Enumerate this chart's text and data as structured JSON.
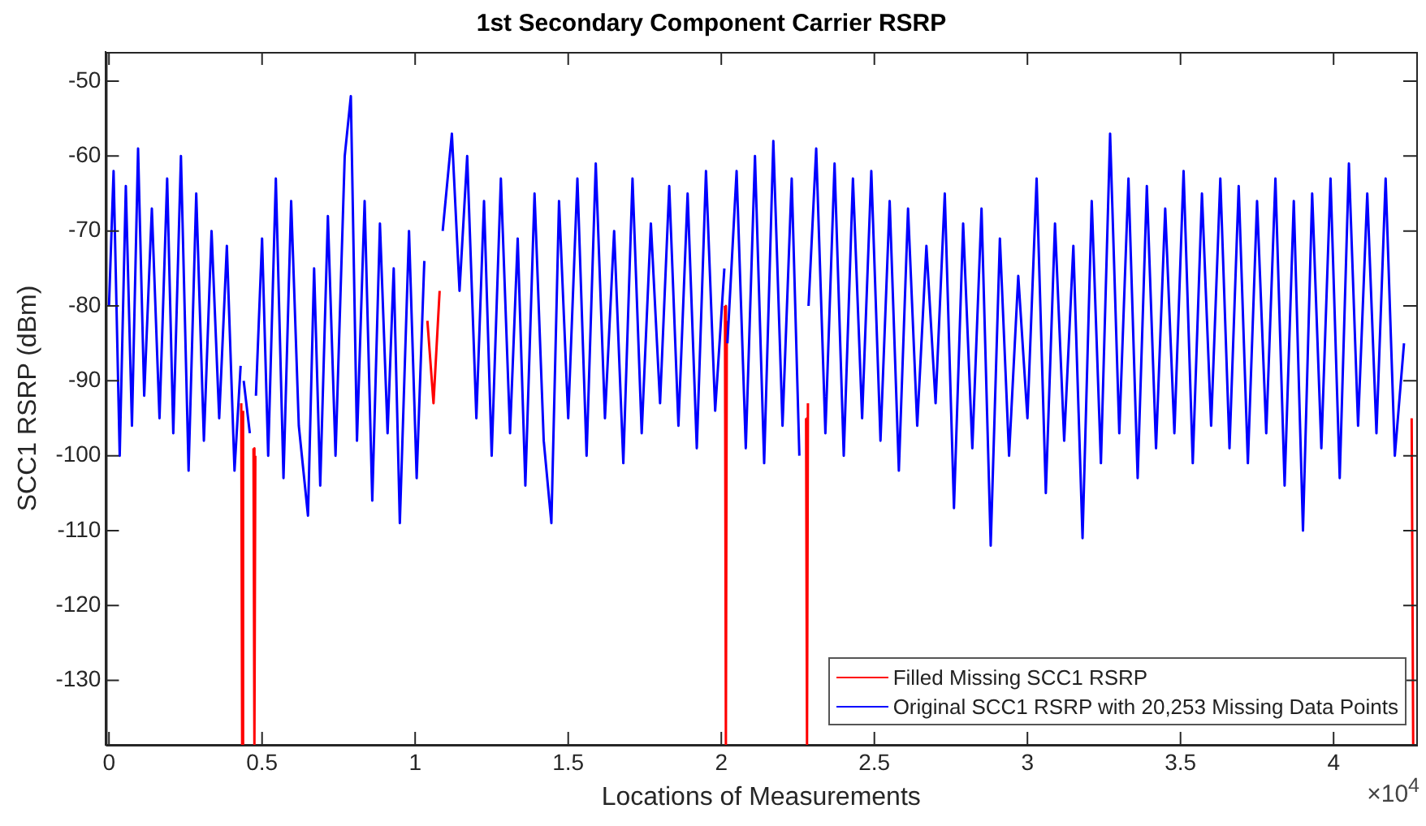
{
  "chart_data": {
    "type": "line",
    "title": "1st Secondary Component Carrier RSRP",
    "xlabel": "Locations of Measurements",
    "ylabel": "SCC1 RSRP (dBm)",
    "annotations": [
      "×10$^{4}$"
    ],
    "xlim": [
      -0.01,
      4.27
    ],
    "ylim": [
      -138.6,
      -46.1
    ],
    "xticks": [
      0,
      0.5,
      1,
      1.5,
      2,
      2.5,
      3,
      3.5,
      4
    ],
    "yticks": [
      -130,
      -120,
      -110,
      -100,
      -90,
      -80,
      -70,
      -60,
      -50
    ],
    "grid": false,
    "legend": "bottom right",
    "marker": "none",
    "line_style": "solid",
    "x": [
      0,
      0.015,
      0.035,
      0.055,
      0.075,
      0.095,
      0.115,
      0.14,
      0.165,
      0.19,
      0.21,
      0.235,
      0.26,
      0.285,
      0.31,
      0.335,
      0.36,
      0.385,
      0.41,
      0.43,
      0.435,
      0.44,
      0.46,
      0.475,
      0.48,
      0.5,
      0.52,
      0.545,
      0.57,
      0.595,
      0.62,
      0.65,
      0.67,
      0.69,
      0.715,
      0.74,
      0.77,
      0.79,
      0.81,
      0.835,
      0.86,
      0.885,
      0.91,
      0.93,
      0.95,
      0.98,
      1.005,
      1.03,
      1.06,
      1.09,
      1.12,
      1.145,
      1.17,
      1.2,
      1.225,
      1.25,
      1.28,
      1.31,
      1.335,
      1.36,
      1.39,
      1.42,
      1.445,
      1.47,
      1.5,
      1.53,
      1.56,
      1.59,
      1.62,
      1.65,
      1.68,
      1.71,
      1.74,
      1.77,
      1.8,
      1.83,
      1.86,
      1.89,
      1.92,
      1.95,
      1.98,
      2.01,
      2.015,
      2.02,
      2.05,
      2.08,
      2.11,
      2.14,
      2.17,
      2.2,
      2.23,
      2.255,
      2.28,
      2.285,
      2.31,
      2.34,
      2.37,
      2.4,
      2.43,
      2.46,
      2.49,
      2.52,
      2.55,
      2.58,
      2.61,
      2.64,
      2.67,
      2.7,
      2.73,
      2.76,
      2.79,
      2.82,
      2.85,
      2.88,
      2.91,
      2.94,
      2.97,
      3,
      3.03,
      3.06,
      3.09,
      3.12,
      3.15,
      3.18,
      3.21,
      3.24,
      3.27,
      3.3,
      3.33,
      3.36,
      3.39,
      3.42,
      3.45,
      3.48,
      3.51,
      3.54,
      3.57,
      3.6,
      3.63,
      3.66,
      3.69,
      3.72,
      3.75,
      3.78,
      3.81,
      3.84,
      3.87,
      3.9,
      3.93,
      3.96,
      3.99,
      4.02,
      4.05,
      4.08,
      4.11,
      4.14,
      4.17,
      4.2,
      4.23
    ],
    "series": [
      {
        "name": "Filled Missing SCC1 RSRP",
        "color": "#ff0000",
        "x": [
          0.432,
          0.435,
          0.438,
          0.45,
          0.472,
          0.475,
          0.478,
          0.49,
          1.04,
          1.06,
          1.08,
          1.1,
          2.012,
          2.015,
          2.018,
          2.03,
          2.277,
          2.28,
          2.283,
          2.29,
          4.255,
          4.26
        ],
        "values": [
          -93,
          -138.5,
          -94,
          null,
          -99,
          -138.5,
          -100,
          null,
          -82,
          -93,
          -78,
          null,
          -80,
          -138.5,
          -82,
          null,
          -95,
          -138.5,
          -93,
          null,
          -95,
          -138.5
        ]
      },
      {
        "name": "Original SCC1 RSRP with 20,253 Missing Data Points",
        "color": "#0000ff",
        "values": [
          -80,
          -62,
          -100,
          -64,
          -96,
          -59,
          -92,
          -67,
          -95,
          -63,
          -97,
          -60,
          -102,
          -65,
          -98,
          -70,
          -95,
          -72,
          -102,
          -88,
          null,
          -90,
          -97,
          null,
          -92,
          -71,
          -100,
          -63,
          -103,
          -66,
          -96,
          -108,
          -75,
          -104,
          -68,
          -100,
          -60,
          -52,
          -98,
          -66,
          -106,
          -69,
          -97,
          -75,
          -109,
          -70,
          -103,
          -74,
          null,
          -70,
          -57,
          -78,
          -60,
          -95,
          -66,
          -100,
          -63,
          -97,
          -71,
          -104,
          -65,
          -98,
          -109,
          -66,
          -95,
          -63,
          -100,
          -61,
          -95,
          -70,
          -101,
          -63,
          -97,
          -69,
          -93,
          -64,
          -96,
          -65,
          -99,
          -62,
          -94,
          -75,
          null,
          -85,
          -62,
          -99,
          -60,
          -101,
          -58,
          -96,
          -63,
          -100,
          null,
          -80,
          -59,
          -97,
          -61,
          -100,
          -63,
          -95,
          -62,
          -98,
          -66,
          -102,
          -67,
          -96,
          -72,
          -93,
          -65,
          -107,
          -69,
          -99,
          -67,
          -112,
          -71,
          -100,
          -76,
          -95,
          -63,
          -105,
          -69,
          -98,
          -72,
          -111,
          -66,
          -101,
          -57,
          -97,
          -63,
          -103,
          -64,
          -99,
          -67,
          -97,
          -62,
          -101,
          -65,
          -96,
          -63,
          -99,
          -64,
          -101,
          -66,
          -97,
          -63,
          -104,
          -66,
          -110,
          -65,
          -99,
          -63,
          -103,
          -61,
          -96,
          -65,
          -97,
          -63,
          -100,
          -85
        ]
      }
    ]
  }
}
